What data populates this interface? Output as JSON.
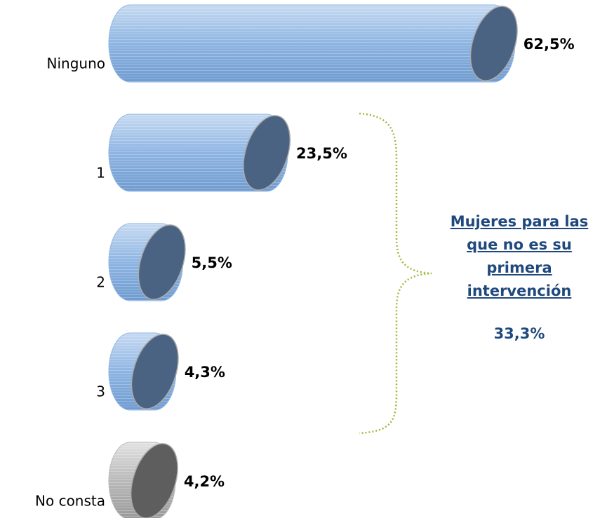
{
  "chart_data": {
    "type": "bar",
    "orientation": "horizontal",
    "categories": [
      "Ninguno",
      "1",
      "2",
      "3",
      "No consta"
    ],
    "values": [
      62.5,
      23.5,
      5.5,
      4.3,
      4.2
    ],
    "value_labels": [
      "62,5%",
      "23,5%",
      "5,5%",
      "4,3%",
      "4,2%"
    ],
    "colors": [
      "#8db4e2",
      "#8db4e2",
      "#8db4e2",
      "#8db4e2",
      "#b8b8b8"
    ],
    "cap_colors": [
      "#4b6383",
      "#4b6383",
      "#4b6383",
      "#4b6383",
      "#5e5e5e"
    ],
    "annotation": {
      "text": "Mujeres para las que no es su primera intervención",
      "label": "33,3%"
    }
  }
}
